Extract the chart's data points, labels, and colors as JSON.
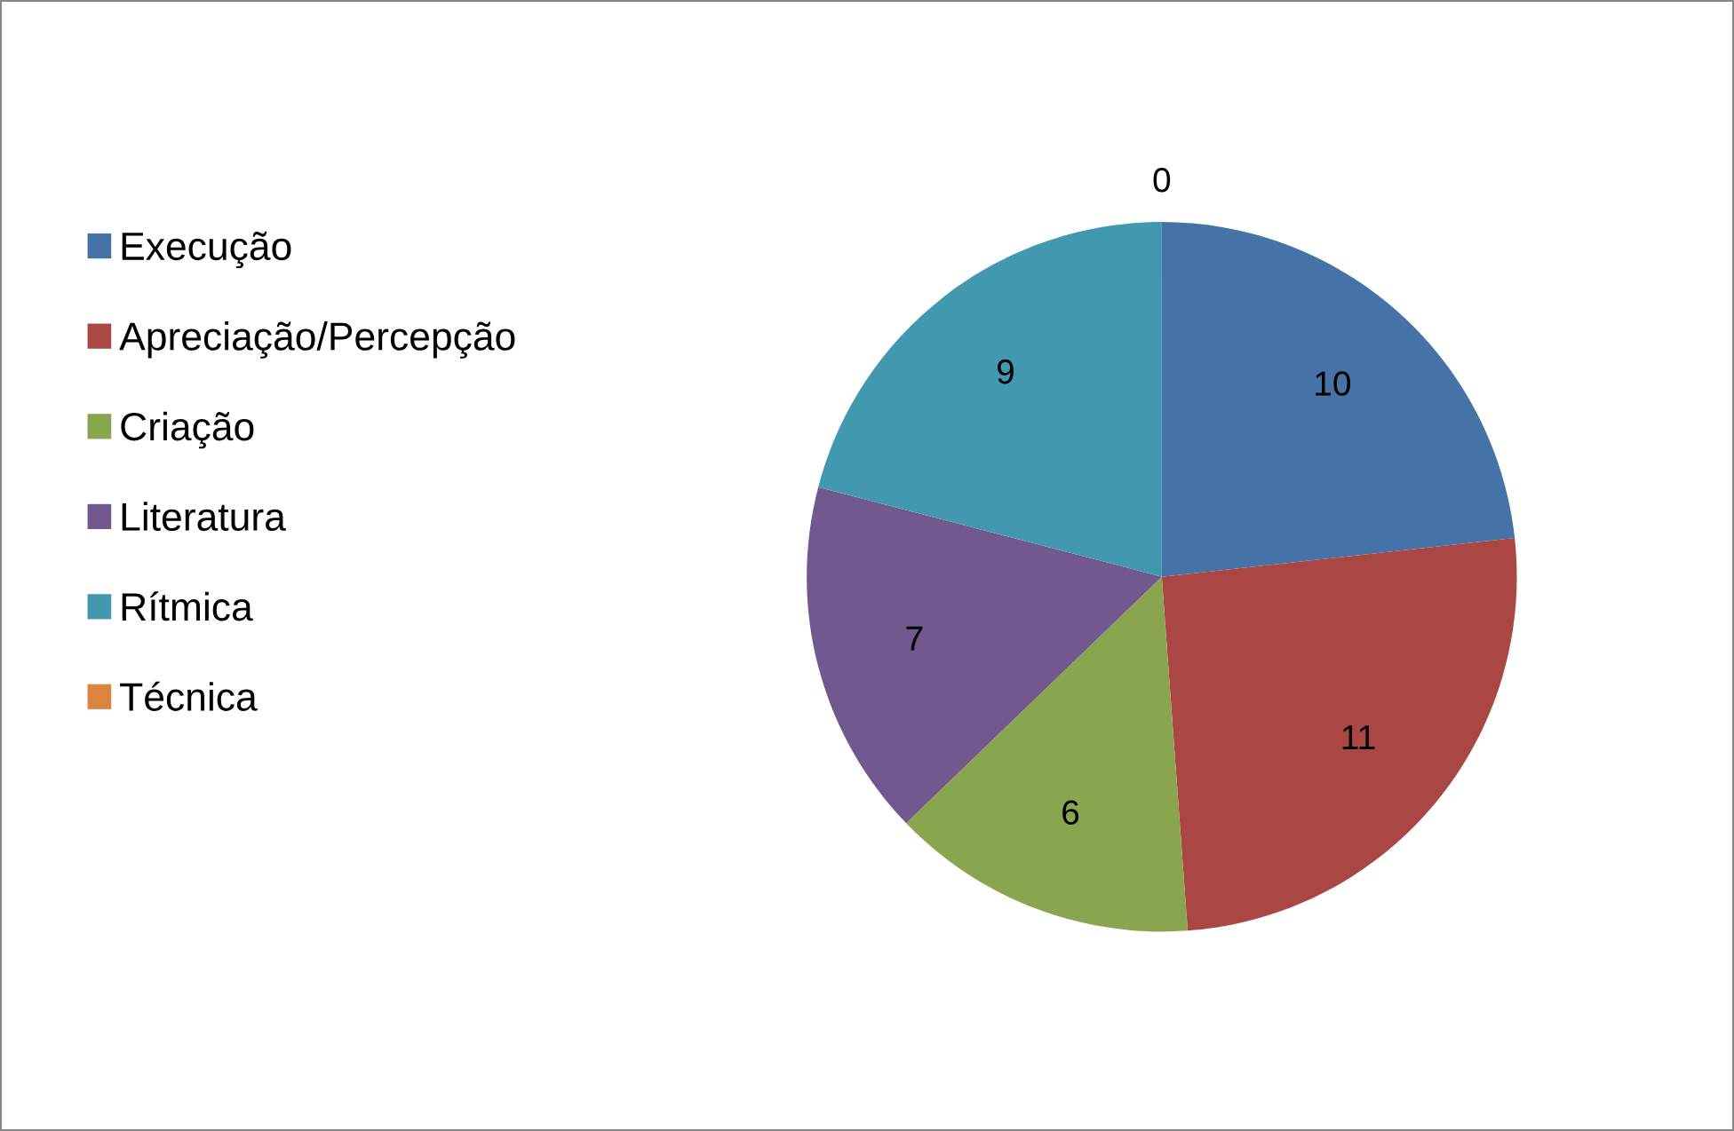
{
  "chart_data": {
    "type": "pie",
    "categories": [
      "Execução",
      "Apreciação/Percepção",
      "Criação",
      "Literatura",
      "Rítmica",
      "Técnica"
    ],
    "values": [
      10,
      11,
      6,
      7,
      9,
      0
    ],
    "colors": [
      "#4572a7",
      "#aa4643",
      "#89a54e",
      "#71588f",
      "#4198af",
      "#db843d"
    ],
    "data_labels": true,
    "value_labels": [
      "10",
      "11",
      "6",
      "7",
      "9",
      "0"
    ],
    "legend": "left"
  }
}
